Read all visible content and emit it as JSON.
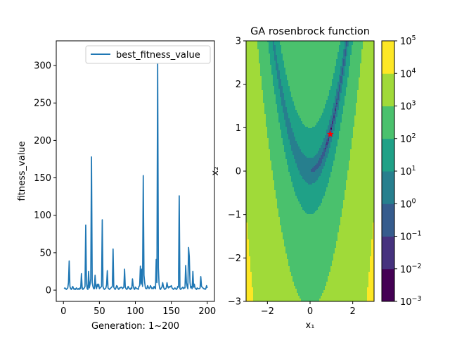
{
  "chart_data": [
    {
      "type": "line",
      "xlabel": "Generation: 1~200",
      "ylabel": "fitness_value",
      "xlim": [
        -10,
        210
      ],
      "ylim": [
        -15,
        333
      ],
      "xticks": [
        0,
        50,
        100,
        150,
        200
      ],
      "yticks": [
        0,
        50,
        100,
        150,
        200,
        250,
        300
      ],
      "legend": {
        "position": "top-right"
      },
      "colors": {
        "line": "#1f77b4"
      },
      "series": [
        {
          "name": "best_fitness_value",
          "x": [
            1,
            2,
            3,
            4,
            5,
            6,
            7,
            8,
            9,
            10,
            11,
            12,
            13,
            14,
            15,
            16,
            17,
            18,
            19,
            20,
            21,
            22,
            23,
            24,
            25,
            26,
            27,
            28,
            29,
            30,
            31,
            32,
            33,
            34,
            35,
            36,
            37,
            38,
            39,
            40,
            41,
            42,
            43,
            44,
            45,
            46,
            47,
            48,
            49,
            50,
            51,
            52,
            53,
            54,
            55,
            56,
            57,
            58,
            59,
            60,
            61,
            62,
            63,
            64,
            65,
            66,
            67,
            68,
            69,
            70,
            71,
            72,
            73,
            74,
            75,
            76,
            77,
            78,
            79,
            80,
            81,
            82,
            83,
            84,
            85,
            86,
            87,
            88,
            89,
            90,
            91,
            92,
            93,
            94,
            95,
            96,
            97,
            98,
            99,
            100,
            101,
            102,
            103,
            104,
            105,
            106,
            107,
            108,
            109,
            110,
            111,
            112,
            113,
            114,
            115,
            116,
            117,
            118,
            119,
            120,
            121,
            122,
            123,
            124,
            125,
            126,
            127,
            128,
            129,
            130,
            131,
            132,
            133,
            134,
            135,
            136,
            137,
            138,
            139,
            140,
            141,
            142,
            143,
            144,
            145,
            146,
            147,
            148,
            149,
            150,
            151,
            152,
            153,
            154,
            155,
            156,
            157,
            158,
            159,
            160,
            161,
            162,
            163,
            164,
            165,
            166,
            167,
            168,
            169,
            170,
            171,
            172,
            173,
            174,
            175,
            176,
            177,
            178,
            179,
            180,
            181,
            182,
            183,
            184,
            185,
            186,
            187,
            188,
            189,
            190,
            191,
            192,
            193,
            194,
            195,
            196,
            197,
            198,
            199,
            200
          ],
          "y": [
            2,
            3,
            2,
            1,
            2,
            3,
            10,
            39,
            5,
            2,
            1,
            3,
            5,
            2,
            1,
            2,
            1,
            3,
            2,
            1,
            2,
            1,
            3,
            2,
            22,
            4,
            1,
            2,
            3,
            5,
            87,
            10,
            2,
            1,
            25,
            3,
            8,
            15,
            178,
            10,
            5,
            2,
            2,
            20,
            5,
            2,
            8,
            5,
            8,
            2,
            3,
            4,
            5,
            94,
            5,
            2,
            1,
            2,
            3,
            7,
            26,
            3,
            2,
            1,
            2,
            3,
            4,
            5,
            55,
            4,
            2,
            1,
            3,
            6,
            5,
            2,
            1,
            3,
            3,
            4,
            4,
            2,
            3,
            4,
            28,
            4,
            2,
            1,
            2,
            5,
            3,
            2,
            1,
            3,
            2,
            15,
            6,
            2,
            1,
            4,
            3,
            2,
            2,
            1,
            5,
            6,
            32,
            8,
            28,
            5,
            153,
            20,
            10,
            3,
            2,
            2,
            6,
            4,
            2,
            3,
            6,
            4,
            2,
            3,
            2,
            5,
            3,
            2,
            41,
            10,
            308,
            30,
            8,
            2,
            1,
            3,
            4,
            10,
            5,
            2,
            1,
            2,
            3,
            10,
            5,
            3,
            5,
            4,
            5,
            6,
            3,
            2,
            1,
            2,
            3,
            2,
            1,
            2,
            5,
            4,
            126,
            2,
            1,
            2,
            3,
            4,
            2,
            3,
            3,
            33,
            10,
            5,
            2,
            57,
            45,
            10,
            3,
            5,
            2,
            25,
            4,
            8,
            3,
            2,
            1,
            3,
            2,
            2,
            2,
            3,
            18,
            5,
            4,
            3,
            2,
            2,
            1,
            2,
            6,
            3
          ]
        }
      ]
    },
    {
      "type": "contour",
      "title": "GA rosenbrock function",
      "xlabel": "x₁",
      "ylabel": "x₂",
      "xlim": [
        -3,
        3
      ],
      "ylim": [
        -3,
        3
      ],
      "xticks": [
        -2,
        0,
        2
      ],
      "yticks": [
        -3,
        -2,
        -1,
        0,
        1,
        2,
        3
      ],
      "log_scale": true,
      "levels": [
        0.001,
        0.01,
        0.1,
        1,
        10,
        100,
        1000,
        10000,
        100000
      ],
      "colorbar": {
        "tick_bases": [
          "10",
          "10",
          "10",
          "10",
          "10",
          "10",
          "10",
          "10",
          "10"
        ],
        "tick_exps": [
          "−3",
          "−2",
          "−1",
          "0",
          "1",
          "2",
          "3",
          "4",
          "5"
        ]
      },
      "colors": [
        "#440154",
        "#46327e",
        "#365c8d",
        "#277f8e",
        "#1fa187",
        "#4ac16d",
        "#a0da39",
        "#fde725"
      ],
      "marker": {
        "x": 0.95,
        "y": 0.85,
        "color": "#ff0000"
      }
    }
  ]
}
